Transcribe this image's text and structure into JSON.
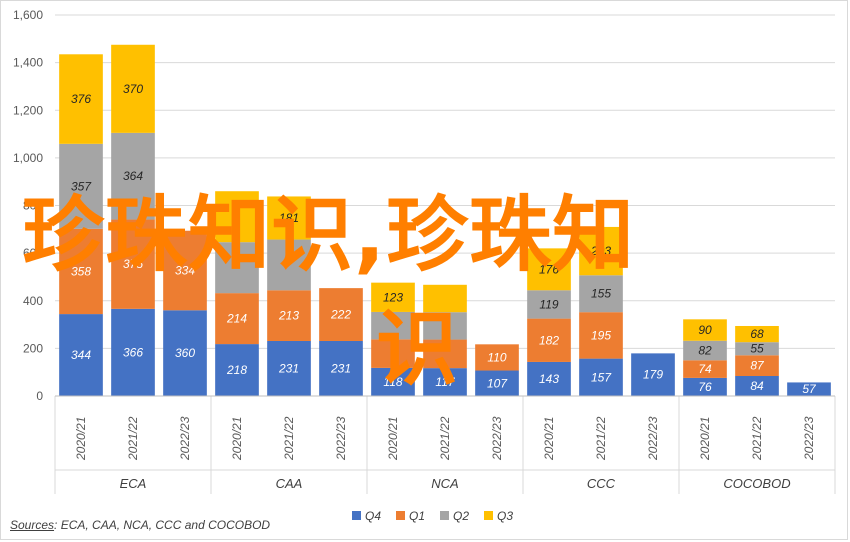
{
  "chart_data": {
    "type": "bar",
    "stacked": true,
    "title": "",
    "xlabel": "",
    "ylabel": "",
    "ylim": [
      0,
      1600
    ],
    "yticks": [
      "0",
      "200",
      "400",
      "600",
      "800",
      "1,000",
      "1,200",
      "1,400",
      "1,600"
    ],
    "ytick_values": [
      0,
      200,
      400,
      600,
      800,
      1000,
      1200,
      1400,
      1600
    ],
    "grid": true,
    "legend_position": "bottom",
    "groups": [
      {
        "name": "ECA",
        "categories": [
          "2020/21",
          "2021/22",
          "2022/23"
        ]
      },
      {
        "name": "CAA",
        "categories": [
          "2020/21",
          "2021/22",
          "2022/23"
        ]
      },
      {
        "name": "NCA",
        "categories": [
          "2020/21",
          "2021/22",
          "2022/23"
        ]
      },
      {
        "name": "CCC",
        "categories": [
          "2020/21",
          "2021/22",
          "2022/23"
        ]
      },
      {
        "name": "COCOBOD",
        "categories": [
          "2020/21",
          "2021/22",
          "2022/23"
        ]
      }
    ],
    "series": [
      {
        "name": "Q4",
        "color": "#4472c4",
        "values": [
          344,
          366,
          360,
          218,
          231,
          231,
          118,
          117,
          107,
          143,
          157,
          179,
          76,
          84,
          57
        ]
      },
      {
        "name": "Q1",
        "color": "#ed7d31",
        "values": [
          358,
          375,
          334,
          214,
          213,
          222,
          120,
          120,
          110,
          182,
          195,
          null,
          74,
          87,
          null
        ]
      },
      {
        "name": "Q2",
        "color": "#a5a5a5",
        "values": [
          357,
          364,
          null,
          214,
          213,
          null,
          115,
          115,
          null,
          119,
          155,
          null,
          82,
          55,
          null
        ]
      },
      {
        "name": "Q3",
        "color": "#ffc000",
        "values": [
          376,
          370,
          null,
          214,
          181,
          null,
          123,
          115,
          null,
          176,
          203,
          null,
          90,
          68,
          null
        ]
      }
    ],
    "labels_shown": {
      "Q4": [
        "344",
        "366",
        "360",
        "218",
        "231",
        "231",
        "118",
        "117",
        "107",
        "143",
        "157",
        "179",
        "76",
        "84",
        "57"
      ],
      "Q1": [
        "358",
        "375",
        "334",
        "214",
        "213",
        "222",
        "",
        "",
        "110",
        "182",
        "195",
        "",
        "74",
        "87",
        ""
      ],
      "Q2": [
        "357",
        "364",
        "",
        "",
        "",
        "",
        "",
        "",
        "",
        "119",
        "155",
        "",
        "82",
        "55",
        ""
      ],
      "Q3": [
        "376",
        "370",
        "",
        "",
        "181",
        "",
        "123",
        "",
        "",
        "176",
        "203",
        "",
        "90",
        "68",
        ""
      ]
    }
  },
  "legend": {
    "items": [
      {
        "name": "Q4",
        "color": "#4472c4"
      },
      {
        "name": "Q1",
        "color": "#ed7d31"
      },
      {
        "name": "Q2",
        "color": "#a5a5a5"
      },
      {
        "name": "Q3",
        "color": "#ffc000"
      }
    ]
  },
  "source": {
    "label": "Sources",
    "text": ": ECA, CAA, NCA, CCC and COCOBOD"
  },
  "watermark": {
    "line1": "珍珠知识,珍珠知",
    "line2": "识"
  }
}
